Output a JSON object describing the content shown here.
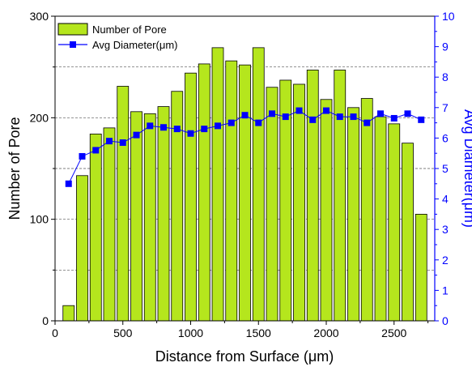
{
  "chart_data": {
    "type": "bar",
    "xlabel": "Distance from Surface (μm)",
    "ylabel": "Number of Pore",
    "y2label": "Avg Diameter(μm)",
    "xlim": [
      0,
      2800
    ],
    "ylim": [
      0,
      300
    ],
    "y2lim": [
      0,
      10
    ],
    "x_ticks": [
      0,
      500,
      1000,
      1500,
      2000,
      2500
    ],
    "y_ticks": [
      0,
      100,
      200,
      300
    ],
    "y2_ticks": [
      0,
      1,
      2,
      3,
      4,
      5,
      6,
      7,
      8,
      9,
      10
    ],
    "grid": "dashed horizontal at 50, 150, 250",
    "legend_position": "top-left",
    "x": [
      100,
      200,
      300,
      400,
      500,
      600,
      700,
      800,
      900,
      1000,
      1100,
      1200,
      1300,
      1400,
      1500,
      1600,
      1700,
      1800,
      1900,
      2000,
      2100,
      2200,
      2300,
      2400,
      2500,
      2600,
      2700
    ],
    "series": [
      {
        "name": "Number of Pore",
        "kind": "bar",
        "axis": "left",
        "color": "#b5e61d",
        "values": [
          15,
          143,
          184,
          190,
          231,
          206,
          204,
          211,
          226,
          244,
          253,
          269,
          256,
          252,
          269,
          230,
          237,
          233,
          247,
          218,
          247,
          210,
          219,
          201,
          194,
          175,
          105
        ]
      },
      {
        "name": "Avg Diameter(μm)",
        "kind": "line",
        "axis": "right",
        "color": "#0000ff",
        "values": [
          4.5,
          5.4,
          5.6,
          5.9,
          5.85,
          6.1,
          6.4,
          6.35,
          6.3,
          6.15,
          6.3,
          6.4,
          6.5,
          6.75,
          6.5,
          6.8,
          6.7,
          6.9,
          6.6,
          6.9,
          6.7,
          6.7,
          6.5,
          6.8,
          6.65,
          6.8,
          6.6
        ]
      }
    ]
  }
}
